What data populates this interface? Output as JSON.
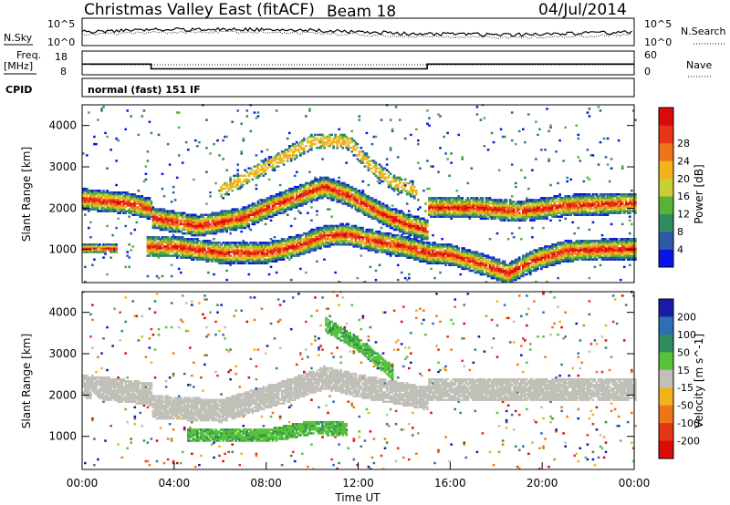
{
  "header": {
    "title": "Christmas Valley East (fitACF)",
    "beam": "Beam 18",
    "date": "04/Jul/2014"
  },
  "strips": {
    "nsky_label": "N.Sky",
    "nsky_ticks": [
      "10^5",
      "10^0"
    ],
    "nsearch_ticks": [
      "10^5",
      "10^0"
    ],
    "nsearch_label": "N.Search",
    "freq_label_1": "Freq.",
    "freq_label_2": "[MHz]",
    "freq_ticks": [
      "18",
      "8"
    ],
    "nave_ticks": [
      "60",
      "0"
    ],
    "nave_label": "Nave",
    "cpid_label": "CPID",
    "cpid_text": "normal (fast) 151 IF",
    "freq_series": [
      {
        "t0": 0,
        "t1": 3.0,
        "value": 12.5
      },
      {
        "t0": 3.0,
        "t1": 15.0,
        "value": 10.5
      },
      {
        "t0": 15.0,
        "t1": 24.0,
        "value": 12.5
      }
    ],
    "freq_range": [
      8,
      18
    ]
  },
  "chart_data": [
    {
      "type": "heatmap",
      "panel": "power",
      "ylabel": "Slant Range [km]",
      "xlabel": "Time UT",
      "xlim": [
        0,
        24
      ],
      "ylim": [
        200,
        4500
      ],
      "xticks": [
        "00:00",
        "04:00",
        "08:00",
        "12:00",
        "16:00",
        "20:00",
        "00:00"
      ],
      "yticks": [
        1000,
        2000,
        3000,
        4000
      ],
      "colorbar": {
        "label": "Power [dB]",
        "ticks": [
          "4",
          "8",
          "12",
          "16",
          "20",
          "24",
          "28"
        ],
        "colors": [
          "#0a14e6",
          "#2a5aa8",
          "#2f8c5c",
          "#58b23a",
          "#c9cf32",
          "#f3b11c",
          "#f07518",
          "#e63416",
          "#dd0a0a"
        ]
      },
      "bands": [
        {
          "name": "upper-band",
          "points": [
            [
              0,
              2200
            ],
            [
              2,
              2100
            ],
            [
              3,
              1950
            ],
            [
              3.01,
              1750
            ],
            [
              5,
              1550
            ],
            [
              7,
              1750
            ],
            [
              9,
              2200
            ],
            [
              10.5,
              2500
            ],
            [
              11.5,
              2300
            ],
            [
              13,
              1850
            ],
            [
              14,
              1600
            ],
            [
              15,
              1450
            ],
            [
              15.01,
              2000
            ],
            [
              17,
              2000
            ],
            [
              19,
              1900
            ],
            [
              21,
              2050
            ],
            [
              24,
              2100
            ]
          ]
        },
        {
          "name": "lower-band",
          "points": [
            [
              2.8,
              1050
            ],
            [
              4,
              1050
            ],
            [
              6,
              900
            ],
            [
              8,
              900
            ],
            [
              9.5,
              1100
            ],
            [
              10.5,
              1300
            ],
            [
              11.5,
              1350
            ],
            [
              12.5,
              1200
            ],
            [
              14,
              1050
            ],
            [
              15,
              900
            ],
            [
              16,
              850
            ],
            [
              17.5,
              600
            ],
            [
              18.5,
              400
            ],
            [
              19.5,
              700
            ],
            [
              21,
              950
            ],
            [
              24,
              1000
            ]
          ]
        },
        {
          "name": "early-band",
          "points": [
            [
              0,
              1000
            ],
            [
              1.5,
              1000
            ]
          ]
        },
        {
          "name": "arch-band",
          "points": [
            [
              6,
              2400
            ],
            [
              8,
              3000
            ],
            [
              10,
              3600
            ],
            [
              11.5,
              3600
            ],
            [
              12.5,
              3000
            ],
            [
              13.5,
              2600
            ],
            [
              14.5,
              2400
            ]
          ]
        }
      ]
    },
    {
      "type": "heatmap",
      "panel": "velocity",
      "ylabel": "Slant Range [km]",
      "xlabel": "Time UT",
      "xlim": [
        0,
        24
      ],
      "ylim": [
        200,
        4500
      ],
      "xticks": [
        "00:00",
        "04:00",
        "08:00",
        "12:00",
        "16:00",
        "20:00",
        "00:00"
      ],
      "yticks": [
        1000,
        2000,
        3000,
        4000
      ],
      "colorbar": {
        "label": "Velocity [m s^-1]",
        "ticks": [
          "200",
          "100",
          "50",
          "15",
          "-15",
          "-50",
          "-100",
          "-200"
        ],
        "colors": [
          "#1a1aa8",
          "#2e6eb8",
          "#2f8c5c",
          "#58c23a",
          "#c0c0b8",
          "#f3b11c",
          "#f07518",
          "#e63416",
          "#dd0a0a"
        ]
      },
      "bands": [
        {
          "name": "ground-scatter",
          "value": "grey",
          "points": [
            [
              0,
              2200
            ],
            [
              3,
              2000
            ],
            [
              3.01,
              1700
            ],
            [
              6,
              1600
            ],
            [
              9,
              2100
            ],
            [
              10.5,
              2400
            ],
            [
              12,
              2200
            ],
            [
              15,
              1900
            ],
            [
              15.01,
              2100
            ],
            [
              24,
              2100
            ]
          ]
        },
        {
          "name": "green-lower",
          "value": "green",
          "points": [
            [
              4.5,
              1000
            ],
            [
              8,
              1000
            ],
            [
              10,
              1200
            ],
            [
              11.5,
              1150
            ]
          ]
        },
        {
          "name": "green-arch",
          "value": "green",
          "points": [
            [
              10.5,
              3700
            ],
            [
              12,
              3200
            ],
            [
              13.5,
              2500
            ]
          ]
        }
      ]
    }
  ]
}
